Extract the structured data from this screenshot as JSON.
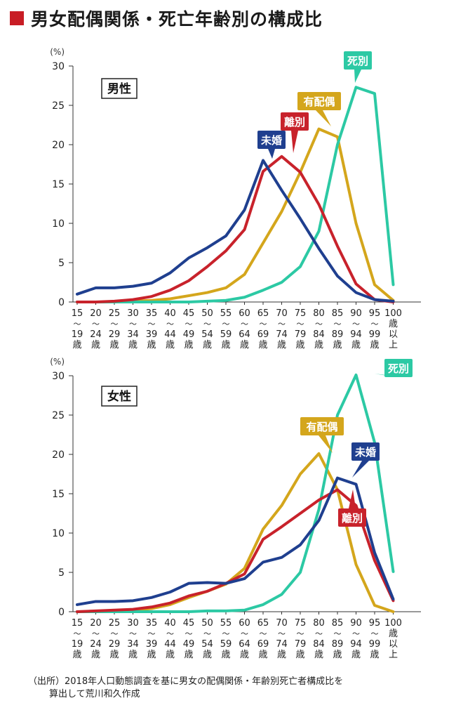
{
  "title": "男女配偶関係・死亡年齢別の構成比",
  "source_line1": "（出所）2018年人口動態調査を基に男女の配偶関係・年齢別死亡者構成比を",
  "source_line2": "算出して荒川和久作成",
  "colors": {
    "未婚": "#1f3f8f",
    "離別": "#c8222b",
    "有配偶": "#d4a61c",
    "死別": "#2cc9a4",
    "title_square": "#c81d25"
  },
  "chart_data": [
    {
      "type": "line",
      "title": "男性",
      "ylabel": "(%)",
      "ylim": [
        0,
        30
      ],
      "yticks": [
        0,
        5,
        10,
        15,
        20,
        25,
        30
      ],
      "categories": [
        {
          "top": "15",
          "bottom": "19"
        },
        {
          "top": "20",
          "bottom": "24"
        },
        {
          "top": "25",
          "bottom": "29"
        },
        {
          "top": "30",
          "bottom": "34"
        },
        {
          "top": "35",
          "bottom": "39"
        },
        {
          "top": "40",
          "bottom": "44"
        },
        {
          "top": "45",
          "bottom": "49"
        },
        {
          "top": "50",
          "bottom": "54"
        },
        {
          "top": "55",
          "bottom": "59"
        },
        {
          "top": "60",
          "bottom": "64"
        },
        {
          "top": "65",
          "bottom": "69"
        },
        {
          "top": "70",
          "bottom": "74"
        },
        {
          "top": "75",
          "bottom": "79"
        },
        {
          "top": "80",
          "bottom": "84"
        },
        {
          "top": "85",
          "bottom": "89"
        },
        {
          "top": "90",
          "bottom": "94"
        },
        {
          "top": "95",
          "bottom": "99"
        },
        {
          "top": "100",
          "bottom": "歳\n以\n上"
        }
      ],
      "series": [
        {
          "name": "未婚",
          "values": [
            1.0,
            1.8,
            1.8,
            2.0,
            2.4,
            3.7,
            5.6,
            6.9,
            8.4,
            11.7,
            18.0,
            14.2,
            10.6,
            6.8,
            3.3,
            1.2,
            0.3,
            0.1
          ]
        },
        {
          "name": "離別",
          "values": [
            0.0,
            0.0,
            0.1,
            0.3,
            0.7,
            1.5,
            2.7,
            4.5,
            6.5,
            9.2,
            16.6,
            18.5,
            16.5,
            12.4,
            7.1,
            2.3,
            0.3,
            0.0
          ]
        },
        {
          "name": "有配偶",
          "values": [
            0.0,
            0.0,
            0.0,
            0.1,
            0.2,
            0.4,
            0.8,
            1.2,
            1.8,
            3.5,
            7.5,
            11.5,
            16.5,
            22.0,
            21.0,
            10.0,
            2.2,
            0.2
          ]
        },
        {
          "name": "死別",
          "values": [
            0.0,
            0.0,
            0.0,
            0.0,
            0.0,
            0.0,
            0.0,
            0.1,
            0.2,
            0.6,
            1.5,
            2.5,
            4.5,
            9.0,
            20.0,
            27.3,
            26.5,
            2.2
          ]
        }
      ],
      "annotations": [
        "未婚",
        "離別",
        "有配偶",
        "死別"
      ]
    },
    {
      "type": "line",
      "title": "女性",
      "ylabel": "(%)",
      "ylim": [
        0,
        30
      ],
      "yticks": [
        0,
        5,
        10,
        15,
        20,
        25,
        30
      ],
      "categories": [
        {
          "top": "15",
          "bottom": "19"
        },
        {
          "top": "20",
          "bottom": "24"
        },
        {
          "top": "25",
          "bottom": "29"
        },
        {
          "top": "30",
          "bottom": "34"
        },
        {
          "top": "35",
          "bottom": "39"
        },
        {
          "top": "40",
          "bottom": "44"
        },
        {
          "top": "45",
          "bottom": "49"
        },
        {
          "top": "50",
          "bottom": "54"
        },
        {
          "top": "55",
          "bottom": "59"
        },
        {
          "top": "60",
          "bottom": "64"
        },
        {
          "top": "65",
          "bottom": "69"
        },
        {
          "top": "70",
          "bottom": "74"
        },
        {
          "top": "75",
          "bottom": "79"
        },
        {
          "top": "80",
          "bottom": "84"
        },
        {
          "top": "85",
          "bottom": "89"
        },
        {
          "top": "90",
          "bottom": "94"
        },
        {
          "top": "95",
          "bottom": "99"
        },
        {
          "top": "100",
          "bottom": "歳\n以\n上"
        }
      ],
      "series": [
        {
          "name": "未婚",
          "values": [
            0.9,
            1.3,
            1.3,
            1.4,
            1.8,
            2.5,
            3.6,
            3.7,
            3.6,
            4.2,
            6.3,
            6.9,
            8.5,
            11.6,
            17.0,
            16.2,
            7.5,
            1.6
          ]
        },
        {
          "name": "離別",
          "values": [
            0.0,
            0.1,
            0.2,
            0.3,
            0.6,
            1.1,
            2.0,
            2.6,
            3.6,
            4.8,
            9.2,
            10.8,
            12.5,
            14.2,
            15.5,
            13.5,
            6.5,
            1.4
          ]
        },
        {
          "name": "有配偶",
          "values": [
            0.0,
            0.0,
            0.1,
            0.2,
            0.4,
            0.9,
            1.8,
            2.6,
            3.5,
            5.5,
            10.5,
            13.5,
            17.5,
            20.1,
            15.5,
            6.0,
            0.8,
            0.0
          ]
        },
        {
          "name": "死別",
          "values": [
            0.0,
            0.0,
            0.0,
            0.0,
            0.0,
            0.0,
            0.0,
            0.1,
            0.1,
            0.2,
            0.9,
            2.2,
            5.0,
            13.0,
            25.0,
            30.1,
            21.5,
            5.1
          ]
        }
      ],
      "annotations": [
        "有配偶",
        "未婚",
        "離別",
        "死別"
      ]
    }
  ]
}
